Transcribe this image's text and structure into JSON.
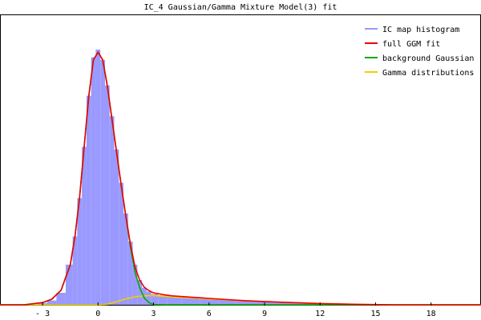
{
  "chart_data": {
    "type": "line",
    "title": "IC_4 Gaussian/Gamma Mixture Model(3) fit",
    "xlabel": "",
    "ylabel": "",
    "xlim": [
      -5.3,
      20.7
    ],
    "ylim": [
      0,
      1.0
    ],
    "x_ticks": [
      -3,
      0,
      3,
      6,
      9,
      12,
      15,
      18
    ],
    "x_tick_labels": [
      "- 3",
      "0",
      "3",
      "6",
      "9",
      "12",
      "15",
      "18"
    ],
    "y_ticks_visible": false,
    "grid": false,
    "legend_position": "top-right",
    "colors": {
      "histogram": "#9999ff",
      "full_fit": "#ee0000",
      "background": "#00aa00",
      "gamma": "#f0d000"
    },
    "series": [
      {
        "name": "IC map histogram",
        "kind": "histogram",
        "x": [
          -3.0,
          -2.5,
          -2.0,
          -1.5,
          -1.25,
          -1.0,
          -0.75,
          -0.5,
          -0.25,
          0.0,
          0.25,
          0.5,
          0.75,
          1.0,
          1.25,
          1.5,
          1.75,
          2.0,
          2.25,
          2.5,
          2.75,
          3.0,
          3.5,
          4.0,
          5.0,
          6.0,
          7.0,
          8.0,
          9.0,
          10.0,
          12.0,
          14.0,
          16.0,
          18.0,
          20.0
        ],
        "values": [
          0.01,
          0.02,
          0.05,
          0.16,
          0.27,
          0.42,
          0.62,
          0.82,
          0.97,
          1.0,
          0.96,
          0.86,
          0.74,
          0.61,
          0.48,
          0.36,
          0.25,
          0.16,
          0.1,
          0.07,
          0.055,
          0.045,
          0.04,
          0.036,
          0.031,
          0.027,
          0.023,
          0.019,
          0.016,
          0.013,
          0.009,
          0.006,
          0.004,
          0.002,
          0.001
        ]
      },
      {
        "name": "full GGM fit",
        "kind": "line",
        "x": [
          -5.3,
          -4.0,
          -3.0,
          -2.5,
          -2.0,
          -1.5,
          -1.25,
          -1.0,
          -0.75,
          -0.5,
          -0.25,
          0.0,
          0.25,
          0.5,
          0.75,
          1.0,
          1.25,
          1.5,
          1.75,
          2.0,
          2.25,
          2.5,
          2.75,
          3.0,
          3.5,
          4.0,
          5.0,
          6.0,
          7.0,
          8.0,
          9.0,
          10.0,
          12.0,
          14.0,
          16.0,
          18.0,
          20.7
        ],
        "values": [
          0.0,
          0.003,
          0.012,
          0.025,
          0.06,
          0.16,
          0.27,
          0.42,
          0.62,
          0.82,
          0.96,
          0.99,
          0.96,
          0.86,
          0.73,
          0.6,
          0.47,
          0.35,
          0.24,
          0.15,
          0.1,
          0.072,
          0.058,
          0.05,
          0.043,
          0.038,
          0.033,
          0.028,
          0.023,
          0.019,
          0.016,
          0.013,
          0.008,
          0.005,
          0.003,
          0.001,
          0.0
        ]
      },
      {
        "name": "background Gaussian",
        "kind": "line",
        "x": [
          -5.3,
          -4.0,
          -3.0,
          -2.5,
          -2.0,
          -1.5,
          -1.25,
          -1.0,
          -0.75,
          -0.5,
          -0.25,
          0.0,
          0.25,
          0.5,
          0.75,
          1.0,
          1.25,
          1.5,
          1.75,
          2.0,
          2.25,
          2.5,
          2.75,
          3.0,
          3.5,
          4.0,
          5.0,
          6.0,
          20.7
        ],
        "values": [
          0.0,
          0.003,
          0.012,
          0.025,
          0.06,
          0.16,
          0.27,
          0.42,
          0.62,
          0.82,
          0.96,
          0.99,
          0.96,
          0.86,
          0.73,
          0.6,
          0.47,
          0.35,
          0.23,
          0.13,
          0.07,
          0.03,
          0.012,
          0.004,
          0.001,
          0.0,
          0.0,
          0.0,
          0.0
        ]
      },
      {
        "name": "Gamma distributions",
        "kind": "line",
        "x": [
          -5.3,
          -3.0,
          -1.0,
          0.0,
          0.5,
          1.0,
          1.5,
          2.0,
          2.5,
          3.0,
          3.5,
          4.0,
          5.0,
          6.0,
          7.0,
          8.0,
          9.0,
          10.0,
          12.0,
          14.0,
          16.0,
          18.0,
          20.7
        ],
        "values": [
          0.0,
          0.0,
          0.0,
          0.001,
          0.005,
          0.015,
          0.026,
          0.034,
          0.038,
          0.039,
          0.037,
          0.034,
          0.03,
          0.026,
          0.022,
          0.019,
          0.016,
          0.013,
          0.008,
          0.005,
          0.003,
          0.001,
          0.0
        ]
      }
    ]
  }
}
